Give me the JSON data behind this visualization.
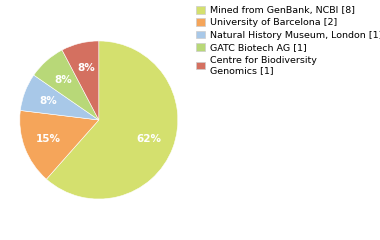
{
  "labels": [
    "Mined from GenBank, NCBI [8]",
    "University of Barcelona [2]",
    "Natural History Museum, London [1]",
    "GATC Biotech AG [1]",
    "Centre for Biodiversity\nGenomics [1]"
  ],
  "values": [
    8,
    2,
    1,
    1,
    1
  ],
  "colors": [
    "#d4e06e",
    "#f5a55a",
    "#a8c8e8",
    "#b8d878",
    "#d47060"
  ],
  "startangle": 90,
  "legend_fontsize": 6.8,
  "autopct_fontsize": 7.5,
  "background_color": "#ffffff"
}
